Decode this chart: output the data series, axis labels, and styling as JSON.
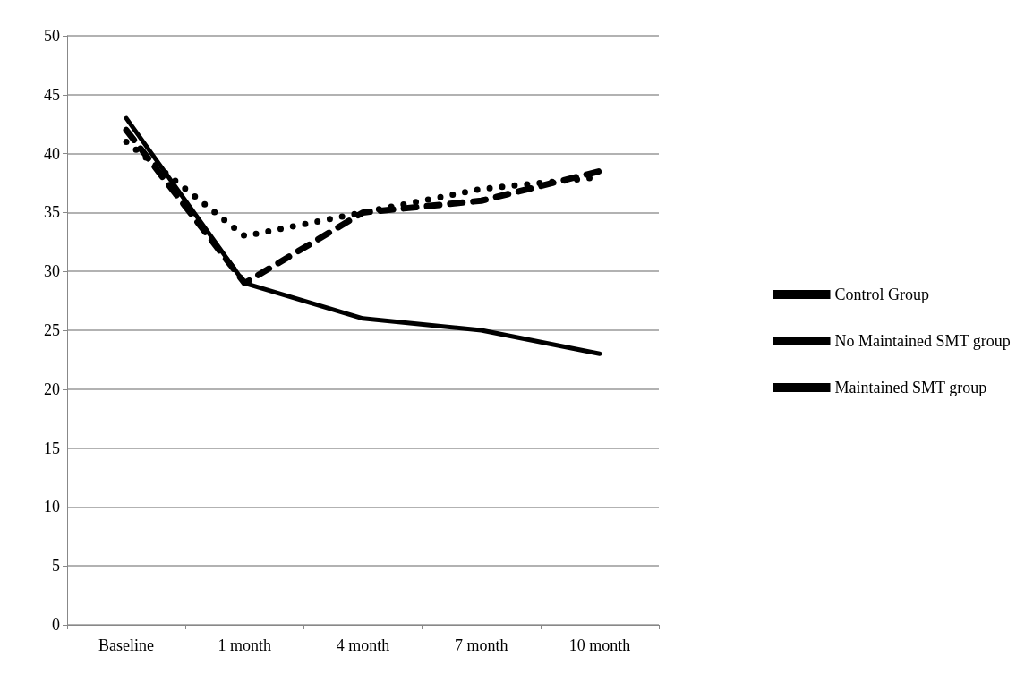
{
  "chart_data": {
    "type": "line",
    "categories": [
      "Baseline",
      "1 month",
      "4 month",
      "7 month",
      "10 month"
    ],
    "series": [
      {
        "name": "Control Group",
        "color": "#000000",
        "line_style": "dotted",
        "values": [
          41,
          33,
          35,
          37,
          38
        ]
      },
      {
        "name": "No Maintained SMT group",
        "color": "#000000",
        "line_style": "dashed",
        "values": [
          42,
          29,
          35,
          36,
          38.5
        ]
      },
      {
        "name": "Maintained SMT group",
        "color": "#000000",
        "line_style": "solid",
        "values": [
          43,
          29,
          26,
          25,
          23
        ]
      }
    ],
    "ylim": [
      0,
      50
    ],
    "yticks": [
      0,
      5,
      10,
      15,
      20,
      25,
      30,
      35,
      40,
      45,
      50
    ],
    "grid": "y",
    "legend": "right",
    "marker": "none"
  }
}
